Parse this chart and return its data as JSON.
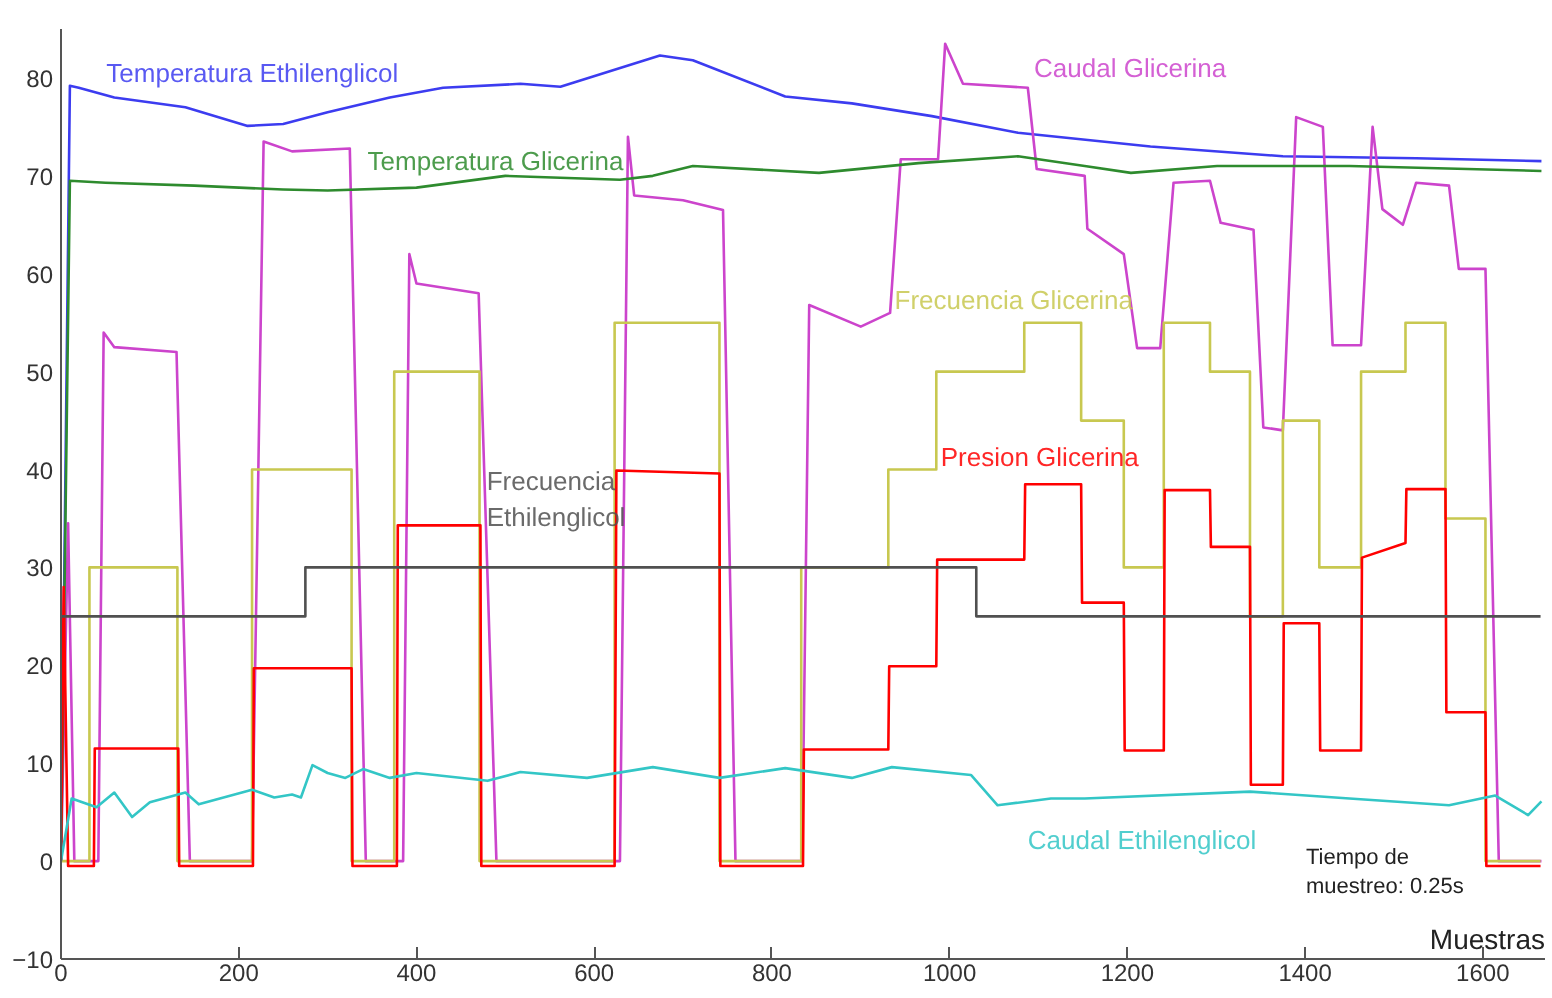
{
  "chart_data": {
    "type": "line",
    "xlabel": "Muestras",
    "xlim": [
      0,
      1670
    ],
    "ylim": [
      -10,
      85
    ],
    "xticks": [
      0,
      200,
      400,
      600,
      800,
      1000,
      1200,
      1400,
      1600
    ],
    "yticks": [
      -10,
      0,
      10,
      20,
      30,
      40,
      50,
      60,
      70,
      80
    ],
    "grid": false,
    "marker": "none",
    "line_style": "solid",
    "annotations": [
      "Tiempo de\nmuestreo: 0.25s"
    ],
    "series": [
      {
        "name": "Temperatura Ethilenglicol",
        "color": "#3c3cf0",
        "x": [
          0,
          10,
          20,
          60,
          140,
          210,
          250,
          300,
          370,
          430,
          517,
          562,
          674,
          711,
          815,
          890,
          980,
          1077,
          1226,
          1375,
          1525,
          1666
        ],
        "values": [
          0,
          79.2,
          79,
          78,
          77,
          75.1,
          75.3,
          76.5,
          78,
          79,
          79.4,
          79.1,
          82.3,
          81.8,
          78.1,
          77.4,
          76.1,
          74.4,
          73,
          72,
          71.8,
          71.5
        ]
      },
      {
        "name": "Caudal Glicerina",
        "color": "#cc44cc",
        "x": [
          0,
          8,
          15,
          42,
          48,
          60,
          130,
          145,
          215,
          228,
          260,
          325,
          343,
          385,
          392,
          400,
          470,
          490,
          629,
          638,
          645,
          700,
          745,
          759,
          834,
          842,
          900,
          933,
          945,
          987,
          995,
          1015,
          1088,
          1098,
          1152,
          1155,
          1196,
          1211,
          1237,
          1252,
          1293,
          1305,
          1342,
          1353,
          1375,
          1390,
          1420,
          1431,
          1463,
          1476,
          1487,
          1510,
          1525,
          1562,
          1573,
          1603,
          1618,
          1666
        ],
        "values": [
          0,
          34.5,
          0,
          0,
          54,
          52.5,
          52,
          0,
          0,
          73.5,
          72.5,
          72.8,
          0,
          0,
          62,
          59,
          58,
          0,
          0,
          74,
          68,
          67.5,
          66.5,
          0,
          0,
          56.8,
          54.6,
          56,
          71.7,
          71.7,
          83.5,
          79.4,
          79,
          70.7,
          70,
          64.6,
          62,
          52.4,
          52.4,
          69.3,
          69.5,
          65.2,
          64.5,
          44.3,
          44,
          76,
          75,
          52.7,
          52.7,
          75,
          66.6,
          65,
          69.3,
          69,
          60.5,
          60.5,
          0,
          0
        ]
      },
      {
        "name": "Temperatura Glicerina",
        "color": "#2e8b2e",
        "x": [
          0,
          10,
          50,
          150,
          250,
          300,
          400,
          500,
          629,
          666,
          711,
          853,
          965,
          1077,
          1152,
          1204,
          1301,
          1450,
          1666
        ],
        "values": [
          0,
          69.5,
          69.3,
          69,
          68.6,
          68.5,
          68.8,
          70,
          69.6,
          70,
          71,
          70.3,
          71.3,
          72,
          71,
          70.3,
          71,
          71,
          70.5
        ]
      },
      {
        "name": "Frecuencia Glicerina",
        "type": "step",
        "color": "#c8c850",
        "x": [
          0,
          32,
          131,
          215,
          327,
          375,
          471,
          623,
          741,
          833,
          931,
          985,
          1084,
          1148,
          1196,
          1241,
          1293,
          1338,
          1375,
          1416,
          1463,
          1513,
          1558,
          1603,
          1665
        ],
        "values": [
          0,
          30,
          0,
          40,
          0,
          50,
          0,
          55,
          0,
          30,
          40,
          50,
          55,
          45,
          30,
          55,
          50,
          25,
          45,
          30,
          50,
          55,
          35,
          0,
          0
        ]
      },
      {
        "name": "Presion Glicerina",
        "color": "#ff0000",
        "x": [
          0,
          3,
          8,
          37,
          38,
          132,
          133,
          216,
          217,
          327,
          328,
          378,
          379,
          472,
          473,
          623,
          625,
          741,
          742,
          835,
          836,
          931,
          932,
          985,
          986,
          1084,
          1085,
          1148,
          1149,
          1196,
          1197,
          1241,
          1242,
          1293,
          1294,
          1338,
          1339,
          1375,
          1376,
          1416,
          1417,
          1463,
          1464,
          1513,
          1514,
          1558,
          1559,
          1603,
          1604,
          1665
        ],
        "values": [
          0,
          28,
          -0.5,
          -0.5,
          11.5,
          11.5,
          -0.5,
          -0.5,
          19.7,
          19.7,
          -0.5,
          -0.5,
          34.3,
          34.3,
          -0.5,
          -0.5,
          39.9,
          39.6,
          -0.5,
          -0.5,
          11.4,
          11.4,
          19.9,
          19.9,
          30.8,
          30.8,
          38.5,
          38.5,
          26.4,
          26.4,
          11.3,
          11.3,
          37.9,
          37.9,
          32.1,
          32.1,
          7.8,
          7.8,
          24.3,
          24.3,
          11.3,
          11.3,
          31,
          32.5,
          38,
          38,
          15.2,
          15.2,
          -0.5,
          -0.5
        ]
      },
      {
        "name": "Frecuencia\nEthilenglicol",
        "type": "step",
        "color": "#505050",
        "x": [
          0,
          275,
          1030,
          1665
        ],
        "values": [
          25,
          30,
          25,
          25
        ]
      },
      {
        "name": "Caudal Ethilenglicol",
        "color": "#33c6c6",
        "x": [
          0,
          12,
          40,
          60,
          80,
          100,
          140,
          155,
          215,
          240,
          260,
          270,
          283,
          300,
          320,
          340,
          370,
          400,
          480,
          517,
          592,
          666,
          741,
          815,
          890,
          935,
          1024,
          1054,
          1114,
          1152,
          1338,
          1450,
          1562,
          1614,
          1651,
          1666
        ],
        "values": [
          0,
          6.4,
          5.5,
          7,
          4.5,
          6,
          7,
          5.8,
          7.3,
          6.5,
          6.8,
          6.5,
          9.8,
          9,
          8.5,
          9.4,
          8.5,
          9,
          8.2,
          9.1,
          8.5,
          9.6,
          8.5,
          9.5,
          8.5,
          9.6,
          8.8,
          5.7,
          6.4,
          6.4,
          7.1,
          6.4,
          5.7,
          6.7,
          4.7,
          6.1
        ]
      }
    ]
  }
}
